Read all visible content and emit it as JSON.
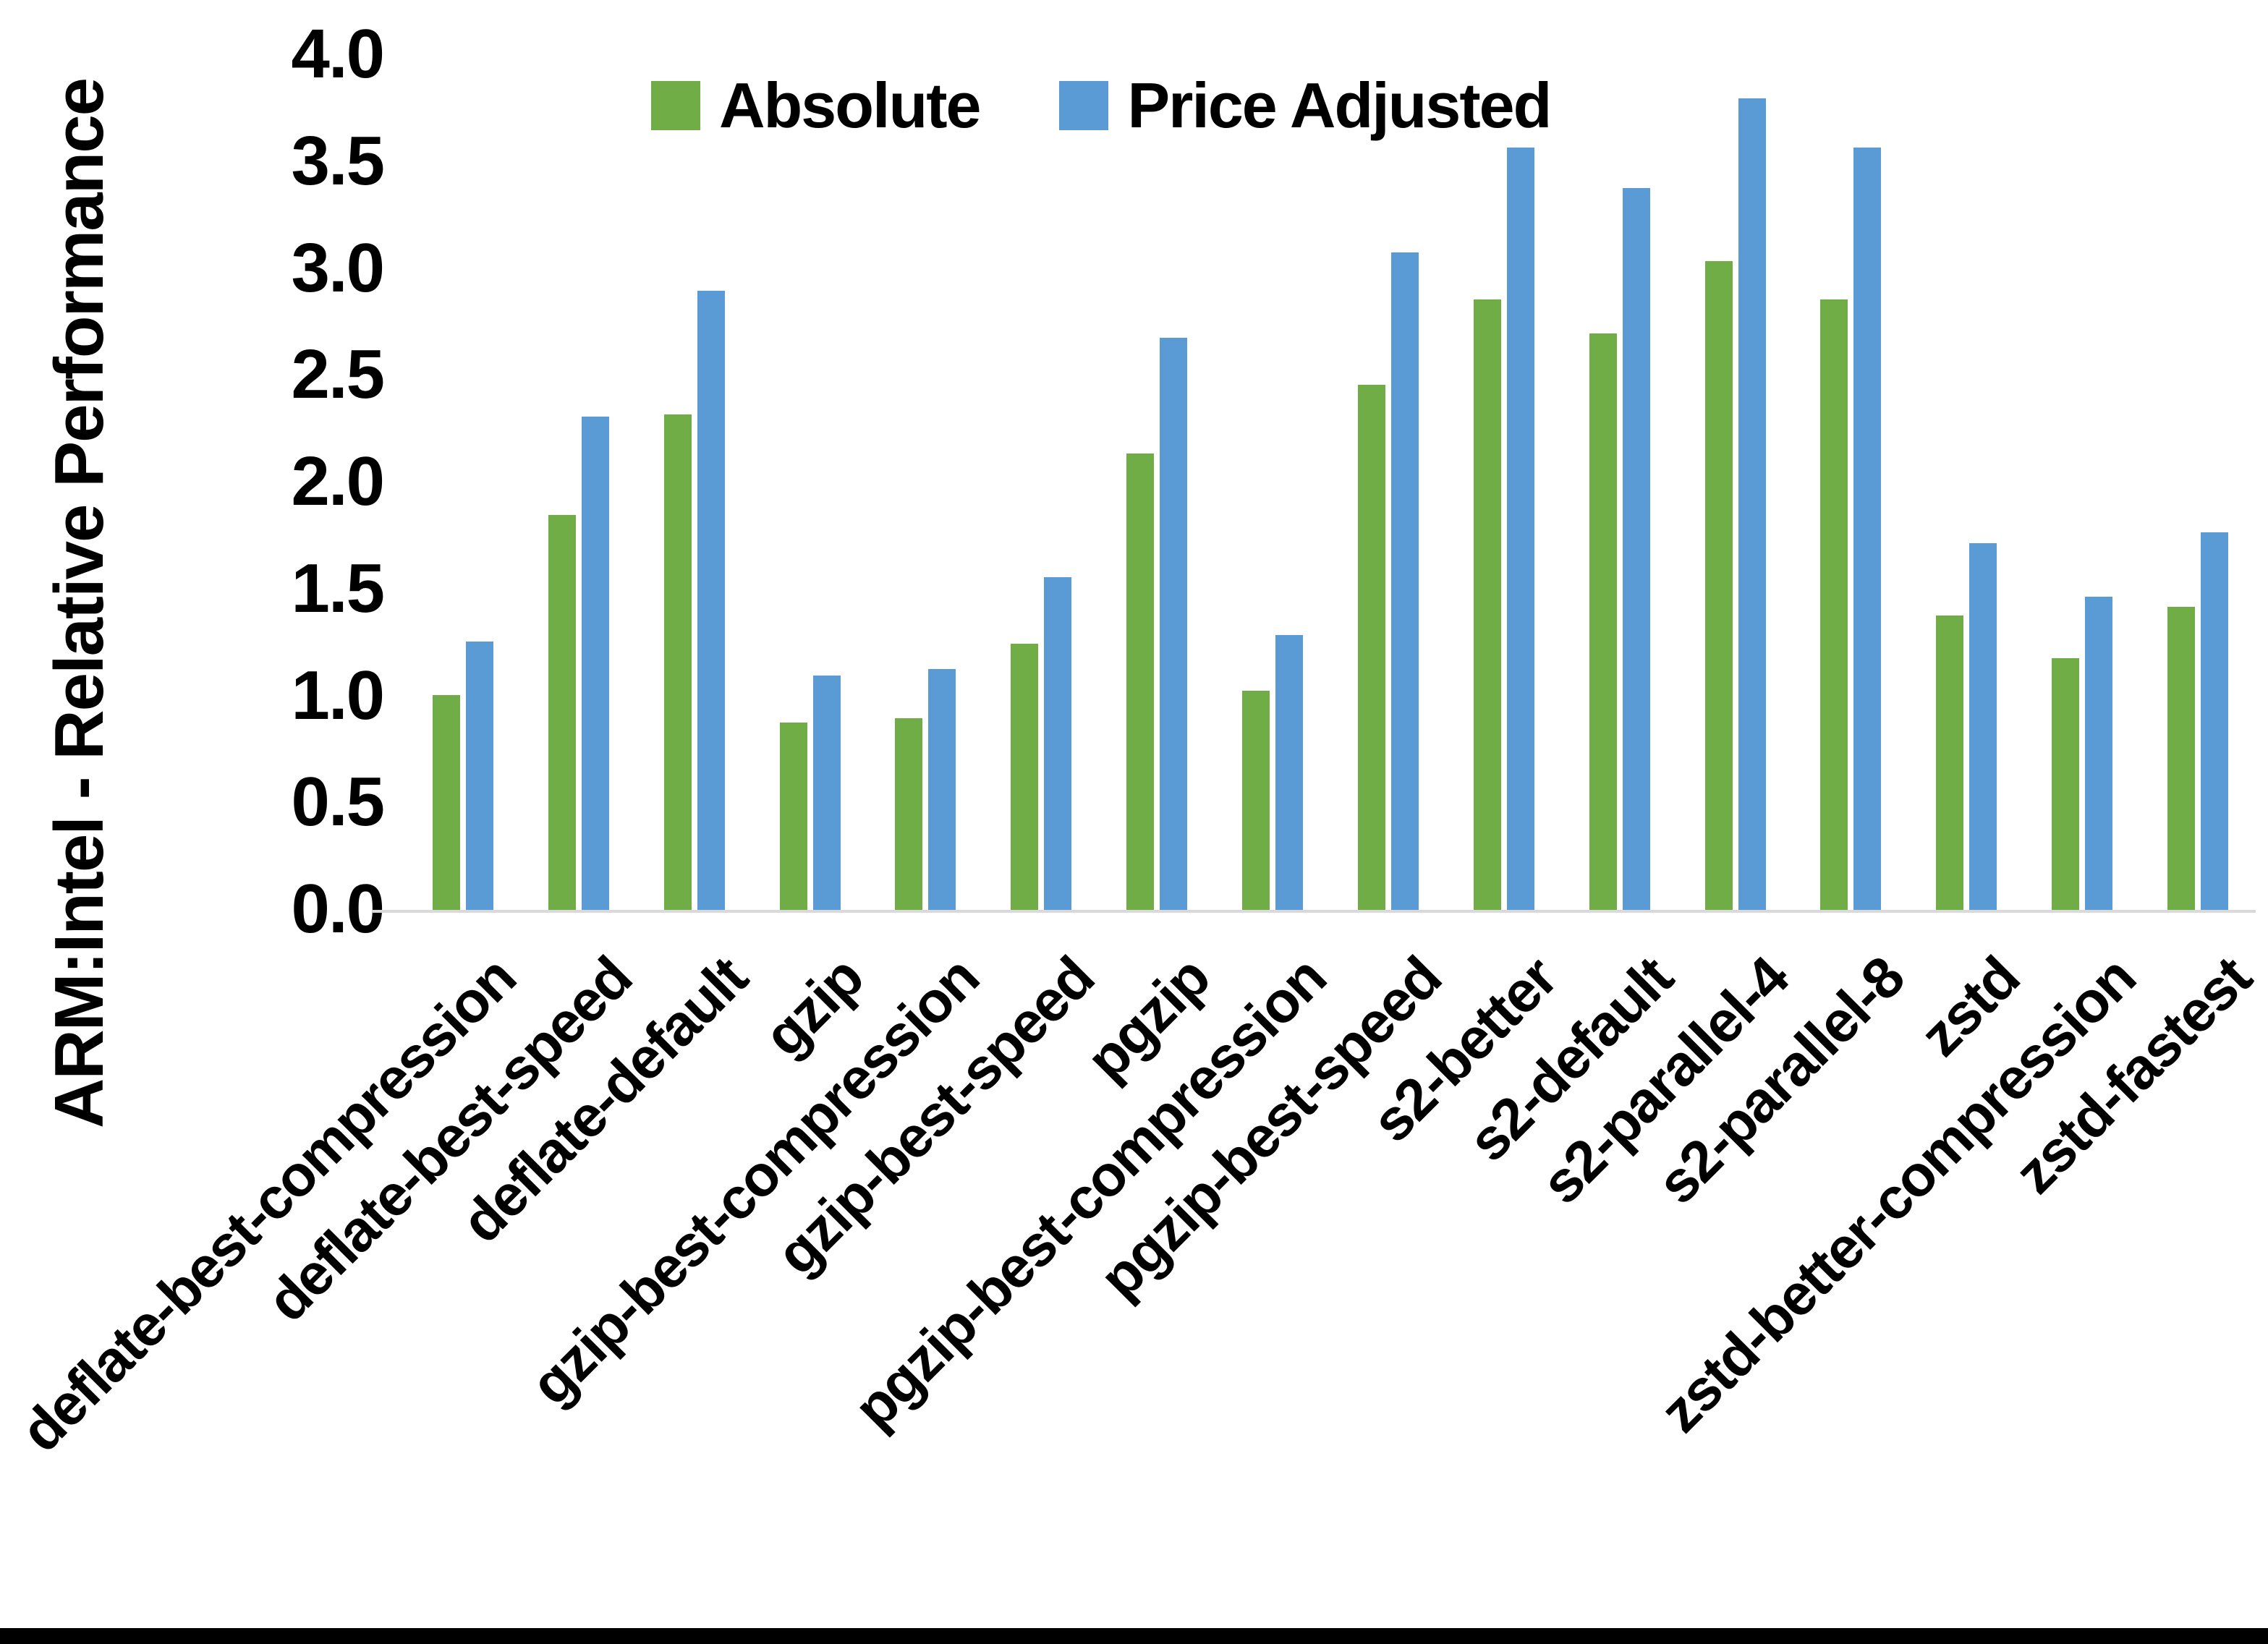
{
  "figure": {
    "background_color": "#ffffff",
    "bottom_border_color": "#000000",
    "axis_line_color": "#d9d9d9",
    "text_color": "#000000"
  },
  "legend": {
    "items": [
      {
        "label": "Absolute",
        "color": "#70AD47"
      },
      {
        "label": "Price Adjusted",
        "color": "#5B9BD5"
      }
    ],
    "position": "top-center"
  },
  "chart_data": {
    "type": "bar",
    "title": "",
    "xlabel": "",
    "ylabel": "ARM:Intel - Relative Performance",
    "ylim": [
      0.0,
      4.0
    ],
    "ytick_step": 0.5,
    "yticks": [
      "4.0",
      "3.5",
      "3.0",
      "2.5",
      "2.0",
      "1.5",
      "1.0",
      "0.5",
      "0.0"
    ],
    "grid": false,
    "legend_position": "top-center",
    "categories": [
      "deflate-best-compression",
      "deflate-best-speed",
      "deflate-default",
      "gzip",
      "gzip-best-compression",
      "gzip-best-speed",
      "pgzip",
      "pgzip-best-compression",
      "pgzip-best-speed",
      "s2-better",
      "s2-default",
      "s2-parallel-4",
      "s2-parallel-8",
      "zstd",
      "zstd-better-compression",
      "zstd-fastest"
    ],
    "series": [
      {
        "name": "Absolute",
        "color": "#70AD47",
        "values": [
          1.01,
          1.85,
          2.32,
          0.88,
          0.9,
          1.25,
          2.14,
          1.03,
          2.46,
          2.86,
          2.7,
          3.04,
          2.86,
          1.38,
          1.18,
          1.42
        ]
      },
      {
        "name": "Price Adjusted",
        "color": "#5B9BD5",
        "values": [
          1.26,
          2.31,
          2.9,
          1.1,
          1.13,
          1.56,
          2.68,
          1.29,
          3.08,
          3.57,
          3.38,
          3.8,
          3.57,
          1.72,
          1.47,
          1.77
        ]
      }
    ]
  }
}
